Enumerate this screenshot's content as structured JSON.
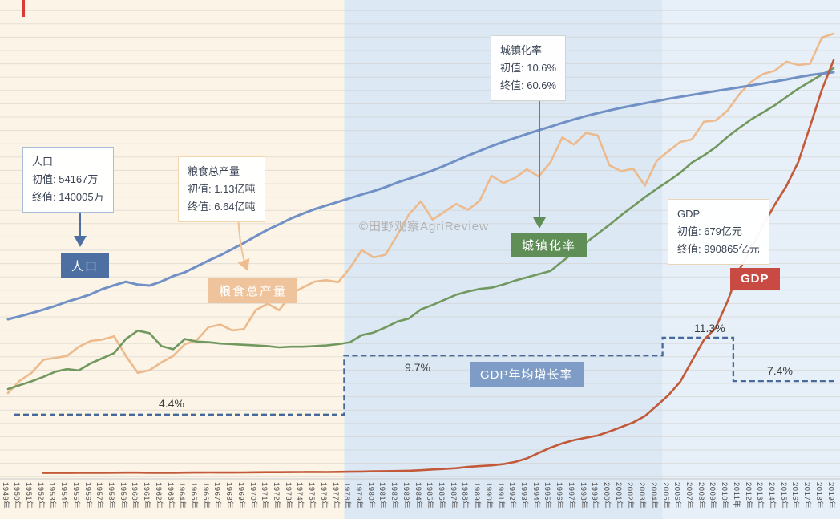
{
  "watermark": "©田野观察AgriReview",
  "badges": {
    "population": "人口",
    "grain": "粮食总产量",
    "urban": "城镇化率",
    "gdp": "GDP",
    "growth": "GDP年均增长率"
  },
  "annotations": {
    "population": {
      "title": "人口",
      "initial": "初值: 54167万",
      "final": "终值: 140005万"
    },
    "grain": {
      "title": "粮食总产量",
      "initial": "初值: 1.13亿吨",
      "final": "终值: 6.64亿吨"
    },
    "urban": {
      "title": "城镇化率",
      "initial": "初值: 10.6%",
      "final": "终值: 60.6%"
    },
    "gdp": {
      "title": "GDP",
      "initial": "初值: 679亿元",
      "final": "终值: 990865亿元"
    }
  },
  "chart_data": {
    "type": "line",
    "x_start": 1949,
    "x_end": 2019,
    "x_tick_suffix": "年",
    "grid": true,
    "y_axis_visible": false,
    "bands": [
      {
        "from": 1949,
        "to": 1977,
        "color": "#fcf4e6"
      },
      {
        "from": 1978,
        "to": 2004,
        "color": "#dce8f4"
      },
      {
        "from": 2005,
        "to": 2019,
        "color": "#e7f0f8"
      }
    ],
    "series": [
      {
        "key": "population",
        "name": "人口",
        "unit": "万",
        "color": "#7191c6",
        "initial": 54167,
        "final": 140005,
        "values": [
          54167,
          55196,
          56300,
          57482,
          58796,
          60266,
          61465,
          62828,
          64653,
          65994,
          67207,
          66207,
          65859,
          67295,
          69172,
          70499,
          72538,
          74542,
          76368,
          78534,
          80671,
          82992,
          85229,
          87177,
          89211,
          90859,
          92420,
          93717,
          94974,
          96259,
          97542,
          98705,
          100072,
          101654,
          103008,
          104357,
          105851,
          107507,
          109300,
          111026,
          112704,
          114333,
          115823,
          117171,
          118517,
          119850,
          121121,
          122389,
          123626,
          124761,
          125786,
          126743,
          127627,
          128453,
          129227,
          129988,
          130756,
          131448,
          132129,
          132802,
          133450,
          134091,
          134735,
          135404,
          136072,
          136782,
          137462,
          138271,
          139008,
          139538,
          140005
        ]
      },
      {
        "key": "grain",
        "name": "粮食总产量",
        "unit": "亿吨",
        "color": "#ecba8c",
        "initial": 1.13,
        "final": 6.64,
        "values": [
          1.13,
          1.32,
          1.44,
          1.64,
          1.67,
          1.7,
          1.84,
          1.93,
          1.95,
          2.0,
          1.7,
          1.44,
          1.48,
          1.6,
          1.7,
          1.88,
          1.94,
          2.14,
          2.18,
          2.09,
          2.11,
          2.4,
          2.5,
          2.4,
          2.65,
          2.75,
          2.84,
          2.86,
          2.83,
          3.05,
          3.32,
          3.21,
          3.25,
          3.55,
          3.87,
          4.07,
          3.79,
          3.91,
          4.03,
          3.94,
          4.08,
          4.46,
          4.35,
          4.43,
          4.56,
          4.45,
          4.67,
          5.05,
          4.94,
          5.12,
          5.08,
          4.62,
          4.53,
          4.57,
          4.31,
          4.69,
          4.84,
          4.98,
          5.02,
          5.29,
          5.31,
          5.46,
          5.71,
          5.9,
          6.02,
          6.07,
          6.21,
          6.16,
          6.18,
          6.58,
          6.64
        ]
      },
      {
        "key": "urban",
        "name": "城镇化率",
        "unit": "%",
        "color": "#71985e",
        "initial": 10.6,
        "final": 60.6,
        "values": [
          10.6,
          11.2,
          11.8,
          12.5,
          13.3,
          13.7,
          13.5,
          14.6,
          15.4,
          16.2,
          18.4,
          19.7,
          19.3,
          17.3,
          16.8,
          18.4,
          18.0,
          17.9,
          17.7,
          17.6,
          17.5,
          17.4,
          17.3,
          17.1,
          17.2,
          17.2,
          17.3,
          17.4,
          17.6,
          17.9,
          19.0,
          19.4,
          20.2,
          21.1,
          21.6,
          23.0,
          23.7,
          24.5,
          25.3,
          25.8,
          26.2,
          26.4,
          26.9,
          27.5,
          28.0,
          28.5,
          29.0,
          30.5,
          31.9,
          33.4,
          34.8,
          36.2,
          37.7,
          39.1,
          40.5,
          41.8,
          43.0,
          44.3,
          45.9,
          47.0,
          48.3,
          49.9,
          51.3,
          52.6,
          53.7,
          54.8,
          56.1,
          57.4,
          58.5,
          59.6,
          60.6
        ]
      },
      {
        "key": "gdp",
        "name": "GDP",
        "unit": "亿元",
        "color": "#c25a3a",
        "start_year": 1952,
        "initial": 679,
        "final": 990865,
        "values": [
          679,
          824,
          859,
          911,
          1030,
          1071,
          1312,
          1447,
          1470,
          1232,
          1162,
          1248,
          1469,
          1734,
          1896,
          1794,
          1744,
          1962,
          2279,
          2456,
          2532,
          2730,
          2803,
          3013,
          2961,
          3221,
          3679,
          4100,
          4588,
          4936,
          5373,
          6021,
          7279,
          9099,
          10376,
          12175,
          15180,
          17180,
          18873,
          22006,
          27195,
          35673,
          48638,
          61340,
          71814,
          79715,
          85196,
          90564,
          100280,
          110863,
          121717,
          137422,
          161840,
          187319,
          219439,
          270092,
          319516,
          349081,
          412119,
          487940,
          538580,
          592963,
          643563,
          688858,
          746395,
          832036,
          919281,
          990865
        ]
      }
    ],
    "growth": {
      "name": "GDP年均增长率",
      "unit": "%",
      "color": "#47699c",
      "style": "dashed-step",
      "segments": [
        {
          "label": "4.4%",
          "value": 4.4,
          "from": 1950,
          "to": 1977
        },
        {
          "label": "9.7%",
          "value": 9.7,
          "from": 1978,
          "to": 2004
        },
        {
          "label": "11.3%",
          "value": 11.3,
          "from": 2005,
          "to": 2010
        },
        {
          "label": "7.4%",
          "value": 7.4,
          "from": 2011,
          "to": 2019
        }
      ]
    }
  }
}
